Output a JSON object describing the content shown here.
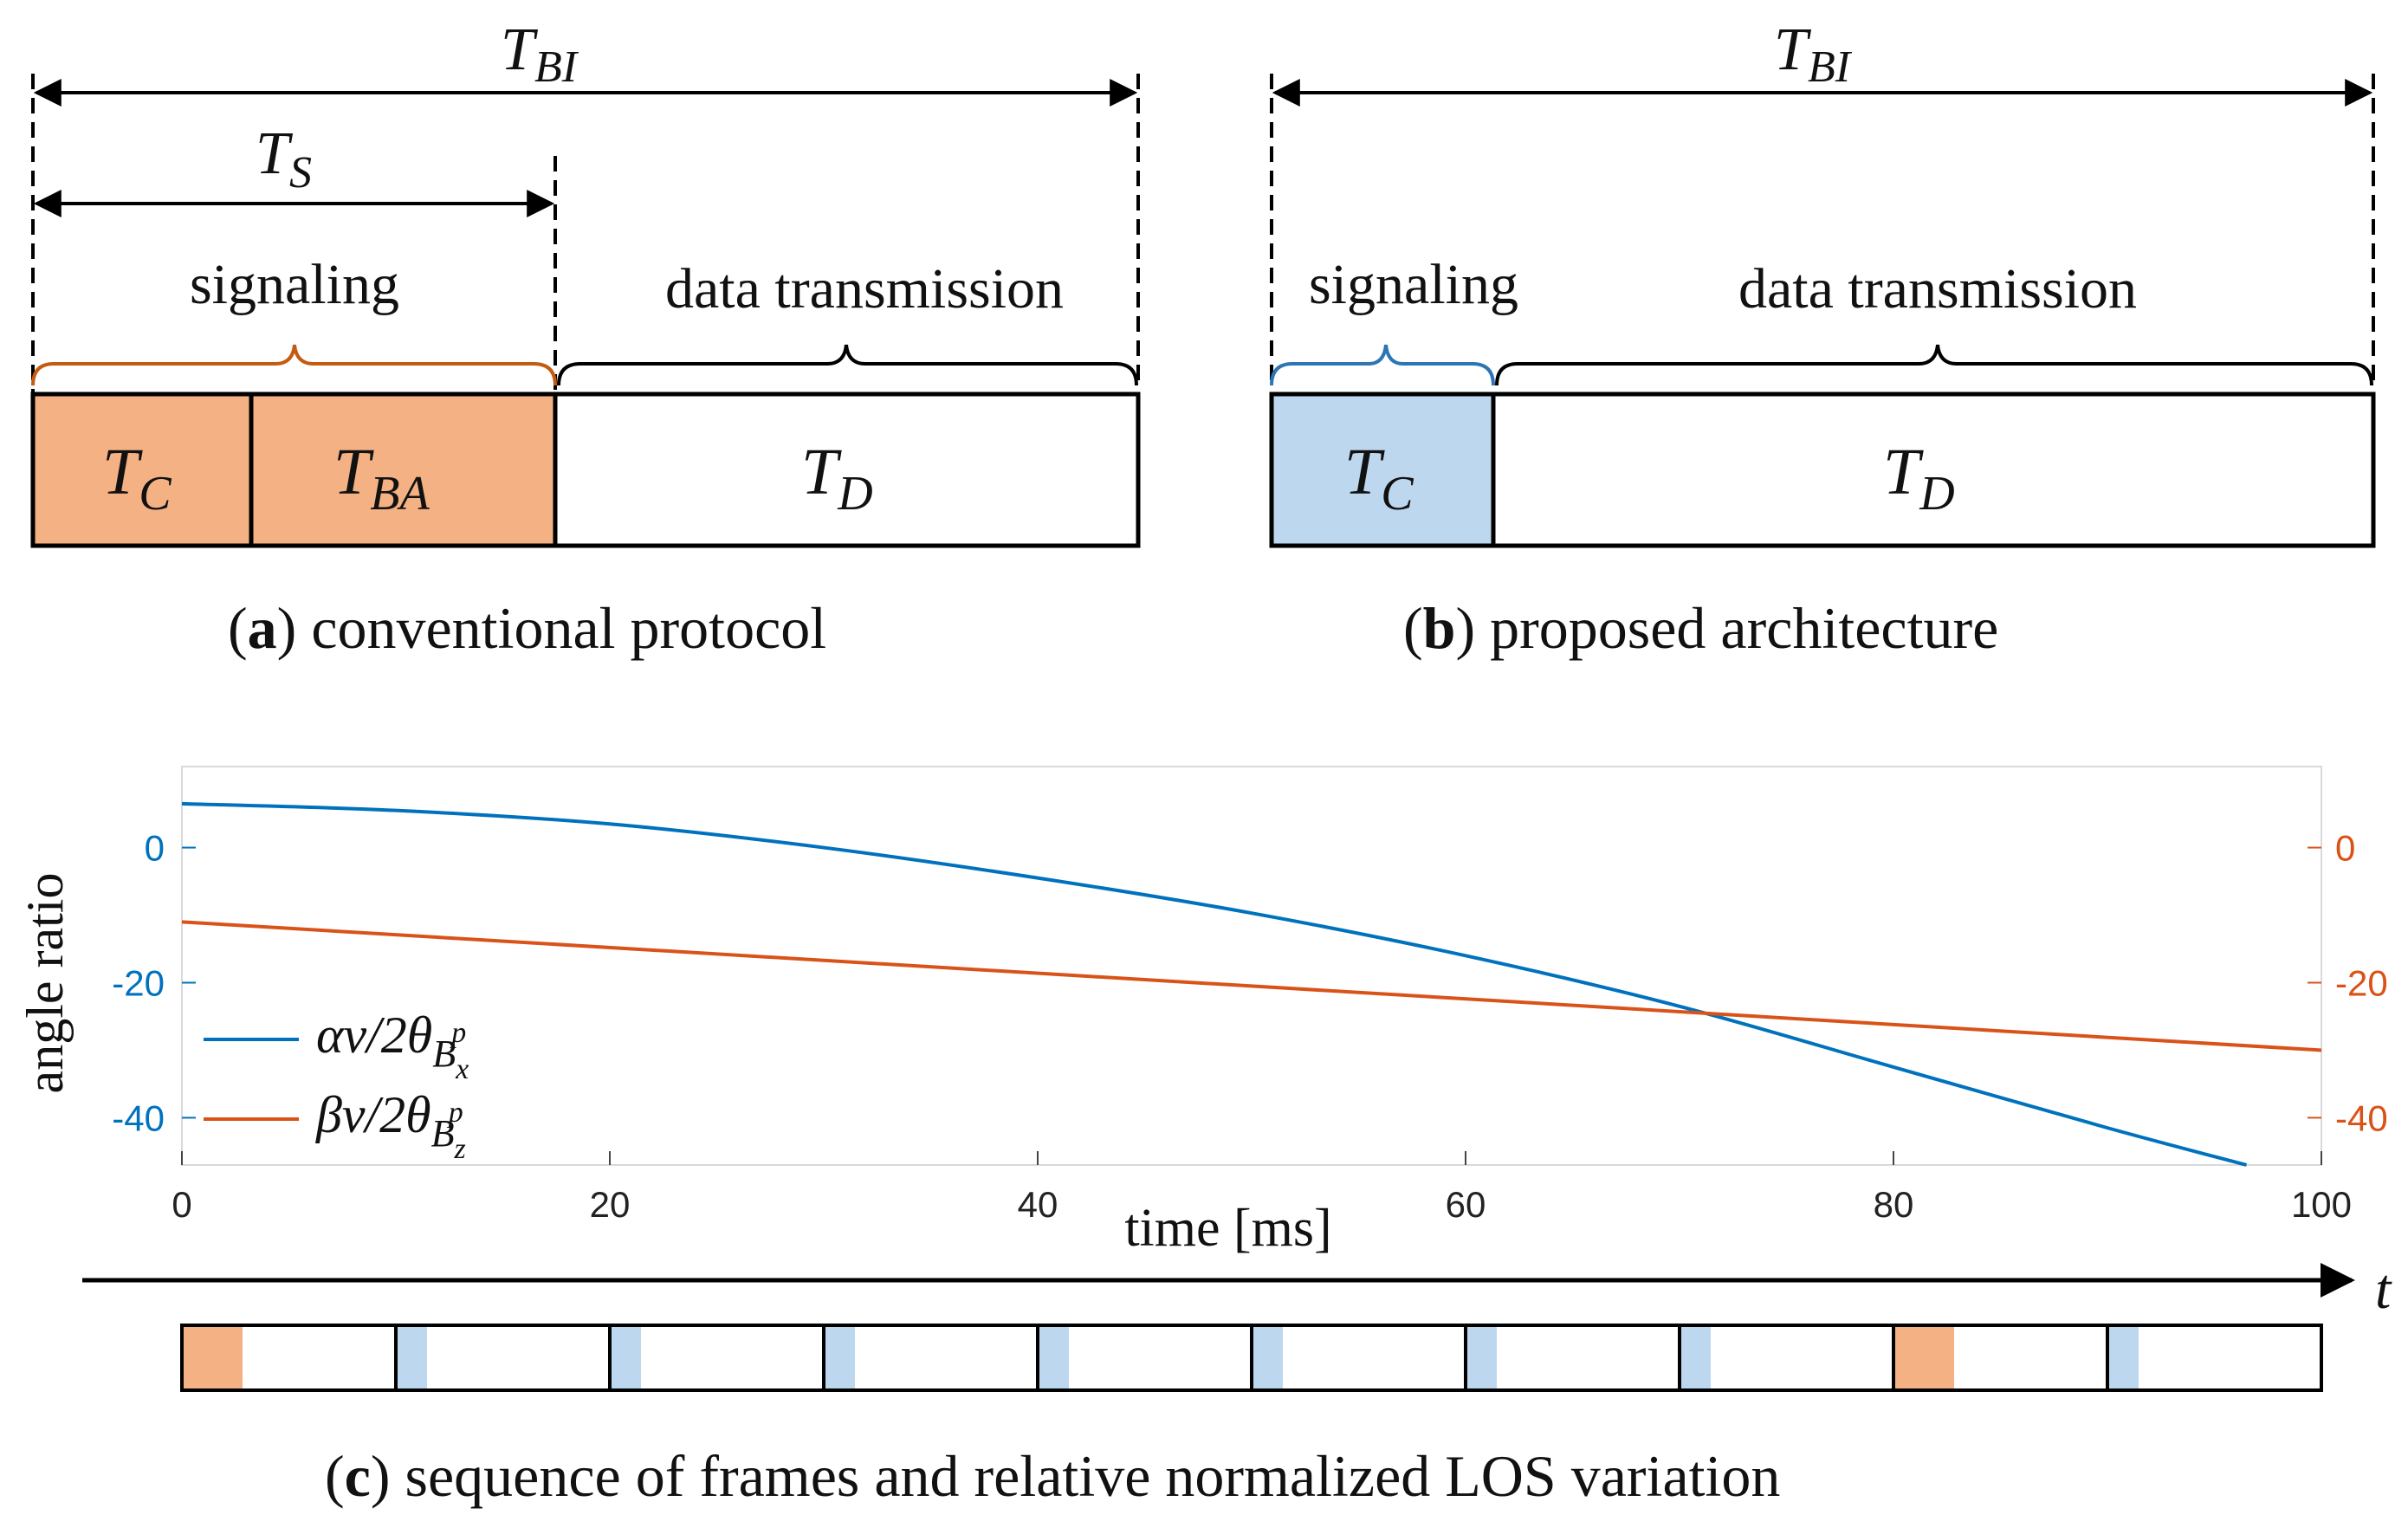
{
  "colors": {
    "orange_fill": "#f4b183",
    "blue_fill": "#bdd7ee",
    "orange_line": "#d95319",
    "blue_line": "#0072bd",
    "orange_brace": "#c55a11",
    "blue_brace": "#2e75b6"
  },
  "panel_a": {
    "t_bi": "T",
    "t_bi_sub": "BI",
    "t_s": "T",
    "t_s_sub": "S",
    "signaling": "signaling",
    "data_transmission": "data transmission",
    "box_tc": "T",
    "box_tc_sub": "C",
    "box_tba": "T",
    "box_tba_sub": "BA",
    "box_td": "T",
    "box_td_sub": "D",
    "caption_letter": "a",
    "caption_text": "conventional protocol"
  },
  "panel_b": {
    "t_bi": "T",
    "t_bi_sub": "BI",
    "signaling": "signaling",
    "data_transmission": "data transmission",
    "box_tc": "T",
    "box_tc_sub": "C",
    "box_td": "T",
    "box_td_sub": "D",
    "caption_letter": "b",
    "caption_text": "proposed architecture"
  },
  "panel_c": {
    "ylabel": "angle ratio",
    "xlabel": "time [ms]",
    "legend_alpha": "αv/2θ",
    "legend_alpha_sub": "B",
    "legend_alpha_subsub": "x",
    "legend_alpha_sup": "p",
    "legend_beta": "βv/2θ",
    "legend_beta_sub": "B",
    "legend_beta_subsub": "z",
    "legend_beta_sup": "p",
    "time_axis_label": "t",
    "caption_letter": "c",
    "caption_text": "sequence of frames and relative normalized LOS variation",
    "frames": [
      {
        "kind": "orange"
      },
      {
        "kind": "blue"
      },
      {
        "kind": "blue"
      },
      {
        "kind": "blue"
      },
      {
        "kind": "blue"
      },
      {
        "kind": "blue"
      },
      {
        "kind": "blue"
      },
      {
        "kind": "blue"
      },
      {
        "kind": "orange"
      },
      {
        "kind": "blue"
      }
    ]
  },
  "chart_data": {
    "type": "line",
    "title": "",
    "xlabel": "time [ms]",
    "ylabel": "angle ratio",
    "xlim": [
      0,
      100
    ],
    "ylim": [
      -47,
      12
    ],
    "xticks": [
      "0",
      "20",
      "40",
      "60",
      "80",
      "100"
    ],
    "yticks_left": [
      "0",
      "-20",
      "-40"
    ],
    "yticks_right": [
      "0",
      "-20",
      "-40"
    ],
    "series": [
      {
        "name": "αv/2θ_{B_x^p}",
        "color": "#0072bd",
        "x": [
          0,
          10,
          20,
          30,
          40,
          50,
          60,
          70,
          80,
          90,
          96.5
        ],
        "y": [
          6.5,
          5.5,
          3.5,
          0,
          -4.5,
          -9.7,
          -16,
          -23.5,
          -32.5,
          -41.5,
          -47
        ]
      },
      {
        "name": "βv/2θ_{B_z^p}",
        "color": "#d95319",
        "x": [
          0,
          100
        ],
        "y": [
          -11,
          -30
        ]
      }
    ]
  }
}
